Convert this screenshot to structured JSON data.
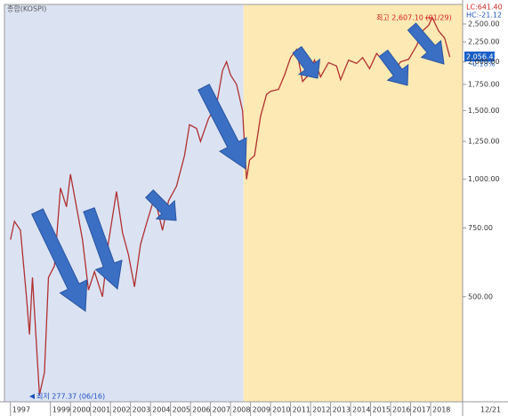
{
  "chart_data": {
    "type": "line",
    "title": "종합(KOSPI)",
    "log_scale": true,
    "color": "#b03030",
    "lc_label": "LC:641.40",
    "hc_label": "HC:-21.12",
    "high_annotation": "최고 2,607.10 (01/29)",
    "low_annotation": "최저 277.37 (06/16)",
    "last_value_label": "2,056.43",
    "last_change_label": "-0.18%",
    "date_label": "12/21",
    "regions": [
      {
        "x0": 1996.7,
        "x1": 2008.65,
        "color": "#dbe3f3"
      },
      {
        "x0": 2008.65,
        "x1": 2019.6,
        "color": "#fde9b3"
      }
    ],
    "x": [
      1997.0,
      1997.2,
      1997.5,
      1997.8,
      1997.95,
      1998.1,
      1998.45,
      1998.7,
      1998.9,
      1999.2,
      1999.5,
      1999.8,
      2000.0,
      2000.3,
      2000.6,
      2000.9,
      2001.2,
      2001.6,
      2001.9,
      2002.3,
      2002.6,
      2002.9,
      2003.2,
      2003.5,
      2003.8,
      2004.2,
      2004.6,
      2004.9,
      2005.3,
      2005.7,
      2005.95,
      2006.3,
      2006.5,
      2006.9,
      2007.3,
      2007.6,
      2007.8,
      2008.0,
      2008.3,
      2008.6,
      2008.8,
      2008.95,
      2009.2,
      2009.5,
      2009.8,
      2010.0,
      2010.4,
      2010.7,
      2011.0,
      2011.3,
      2011.6,
      2011.9,
      2012.2,
      2012.5,
      2012.9,
      2013.3,
      2013.5,
      2013.9,
      2014.3,
      2014.6,
      2014.95,
      2015.3,
      2015.6,
      2015.9,
      2016.1,
      2016.5,
      2016.9,
      2017.3,
      2017.6,
      2017.9,
      2018.08,
      2018.4,
      2018.7,
      2018.96
    ],
    "values": [
      700,
      780,
      740,
      500,
      400,
      560,
      280,
      320,
      560,
      600,
      950,
      850,
      1030,
      850,
      700,
      520,
      580,
      500,
      690,
      930,
      730,
      640,
      530,
      680,
      770,
      900,
      740,
      880,
      960,
      1150,
      1380,
      1350,
      1250,
      1430,
      1550,
      1900,
      2000,
      1850,
      1750,
      1500,
      1000,
      1120,
      1150,
      1450,
      1650,
      1680,
      1700,
      1850,
      2050,
      2150,
      1780,
      1850,
      2020,
      1830,
      1990,
      1950,
      1800,
      2020,
      1980,
      2050,
      1920,
      2100,
      2020,
      1960,
      1860,
      2000,
      2030,
      2200,
      2400,
      2480,
      2598,
      2400,
      2300,
      2056.43
    ],
    "xlim": [
      1996.7,
      2019.6
    ],
    "xticks": [
      1997,
      1999,
      2000,
      2001,
      2002,
      2003,
      2004,
      2005,
      2006,
      2007,
      2008,
      2009,
      2010,
      2011,
      2012,
      2013,
      2014,
      2015,
      2016,
      2017,
      2018
    ],
    "ylim": [
      269,
      2805
    ],
    "yticks": [
      {
        "value": 2500,
        "label": "2,500.00"
      },
      {
        "value": 2250,
        "label": "2,250.00"
      },
      {
        "value": 2000,
        "label": "2,000.00"
      },
      {
        "value": 1750,
        "label": "1,750.00"
      },
      {
        "value": 1500,
        "label": "1,500.00"
      },
      {
        "value": 1250,
        "label": "1,250.00"
      },
      {
        "value": 1000,
        "label": "1,000.00"
      },
      {
        "value": 750,
        "label": "750.00"
      },
      {
        "value": 500,
        "label": "500.00"
      }
    ]
  }
}
